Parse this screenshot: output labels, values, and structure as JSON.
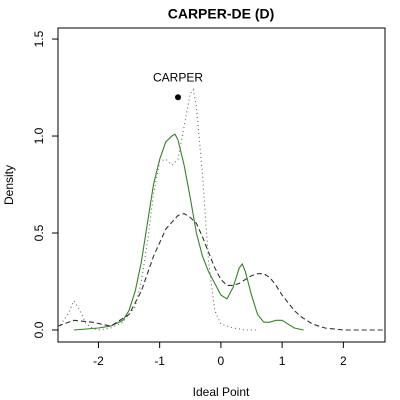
{
  "chart_data": {
    "type": "line",
    "title": "CARPER-DE (D)",
    "x_label": "Ideal Point",
    "y_label": "Density",
    "xlim": [
      -2.66,
      2.68
    ],
    "ylim": [
      -0.062,
      1.557
    ],
    "xticks": [
      -2,
      -1,
      0,
      1,
      2
    ],
    "yticks": [
      {
        "value": 0,
        "label": "0.0"
      },
      0.5,
      {
        "value": 1,
        "label": "1.0"
      },
      1.5
    ],
    "series": [
      {
        "color": "#3b7f2e",
        "style": "solid",
        "x": [
          -2.4,
          -2.0,
          -1.8,
          -1.6,
          -1.5,
          -1.4,
          -1.3,
          -1.2,
          -1.1,
          -1.0,
          -0.9,
          -0.8,
          -0.75,
          -0.7,
          -0.6,
          -0.5,
          -0.4,
          -0.3,
          -0.2,
          -0.1,
          0.0,
          0.1,
          0.2,
          0.3,
          0.35,
          0.4,
          0.5,
          0.6,
          0.7,
          0.8,
          0.9,
          1.0,
          1.1,
          1.2,
          1.35
        ],
        "values": [
          0.0,
          0.01,
          0.02,
          0.05,
          0.1,
          0.2,
          0.35,
          0.55,
          0.75,
          0.88,
          0.97,
          1.0,
          1.01,
          0.98,
          0.85,
          0.68,
          0.5,
          0.38,
          0.3,
          0.24,
          0.18,
          0.16,
          0.22,
          0.32,
          0.34,
          0.3,
          0.18,
          0.08,
          0.04,
          0.04,
          0.05,
          0.05,
          0.03,
          0.01,
          0.0
        ]
      },
      {
        "color": "#333333",
        "style": "dashed",
        "x": [
          -2.66,
          -2.4,
          -2.1,
          -1.8,
          -1.5,
          -1.3,
          -1.1,
          -0.9,
          -0.7,
          -0.6,
          -0.5,
          -0.4,
          -0.3,
          -0.2,
          -0.1,
          0.0,
          0.1,
          0.2,
          0.3,
          0.4,
          0.5,
          0.6,
          0.7,
          0.8,
          0.9,
          1.0,
          1.1,
          1.2,
          1.3,
          1.4,
          1.5,
          1.7,
          2.0,
          2.68
        ],
        "values": [
          0.02,
          0.05,
          0.04,
          0.02,
          0.08,
          0.2,
          0.38,
          0.52,
          0.59,
          0.6,
          0.58,
          0.55,
          0.48,
          0.4,
          0.32,
          0.26,
          0.23,
          0.23,
          0.24,
          0.26,
          0.28,
          0.29,
          0.29,
          0.27,
          0.23,
          0.18,
          0.14,
          0.1,
          0.07,
          0.05,
          0.03,
          0.01,
          0.0,
          0.0
        ]
      },
      {
        "color": "#666666",
        "style": "dotted",
        "x": [
          -2.66,
          -2.5,
          -2.4,
          -2.3,
          -2.2,
          -2.1,
          -2.0,
          -1.8,
          -1.6,
          -1.4,
          -1.3,
          -1.2,
          -1.1,
          -1.0,
          -0.9,
          -0.8,
          -0.7,
          -0.6,
          -0.5,
          -0.45,
          -0.4,
          -0.3,
          -0.2,
          -0.1,
          0.0,
          0.2,
          0.4,
          0.6
        ],
        "values": [
          0.01,
          0.08,
          0.15,
          0.1,
          0.03,
          0.01,
          0.0,
          0.01,
          0.04,
          0.12,
          0.25,
          0.45,
          0.7,
          0.87,
          0.88,
          0.85,
          0.88,
          1.05,
          1.22,
          1.24,
          1.15,
          0.8,
          0.35,
          0.1,
          0.03,
          0.01,
          0.0,
          0.0
        ]
      }
    ],
    "points": [
      {
        "text": "CARPER",
        "x": -0.7,
        "y": 1.2
      }
    ]
  }
}
